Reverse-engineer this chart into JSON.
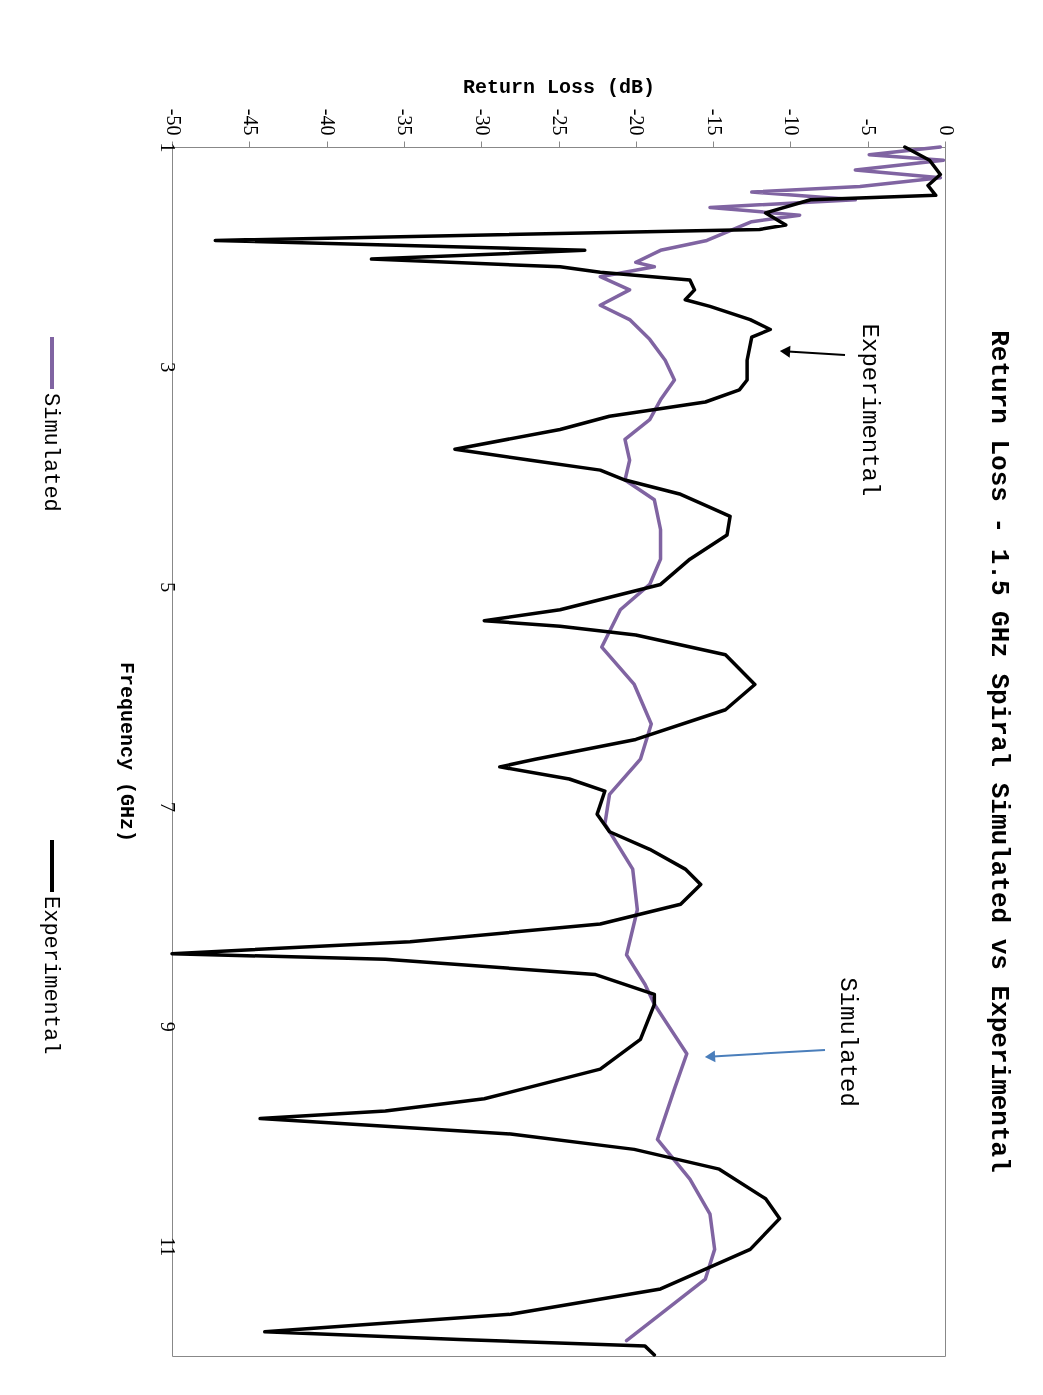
{
  "chart_data": {
    "type": "line",
    "title": "Return Loss - 1.5 GHz Spiral Simulated vs Experimental",
    "xlabel": "Return Loss (dB)",
    "ylabel": "Frequency (GHz)",
    "xlim": [
      -50,
      0
    ],
    "xticks": [
      -50,
      -45,
      -40,
      -35,
      -30,
      -25,
      -20,
      -15,
      -10,
      -5,
      0
    ],
    "ylim": [
      12,
      1
    ],
    "yticks": [
      1,
      3,
      5,
      7,
      9,
      11
    ],
    "grid": false,
    "legend": "left",
    "marker": "none",
    "line_style": "solid",
    "series": [
      {
        "name": "Simulated",
        "color": "#8064a2",
        "values": [
          1.0,
          1.07,
          1.12,
          1.21,
          1.28,
          1.36,
          1.41,
          1.48,
          1.55,
          1.62,
          1.68,
          1.85,
          1.94,
          2.05,
          2.09,
          2.18,
          2.3,
          2.44,
          2.57,
          2.75,
          2.94,
          3.12,
          3.3,
          3.48,
          3.66,
          3.85,
          4.03,
          4.21,
          4.48,
          4.75,
          4.98,
          5.21,
          5.55,
          5.89,
          6.25,
          6.57,
          6.89,
          7.16,
          7.57,
          7.94,
          8.35,
          8.62,
          8.8,
          9.25,
          9.57,
          10.03,
          10.39,
          10.71,
          11.03,
          11.3,
          11.62,
          11.86
        ],
        "x": [
          -0.3,
          -4.9,
          -0.1,
          -5.8,
          -0.3,
          -5.5,
          -12.5,
          -5.8,
          -15.2,
          -9.4,
          -12.5,
          -15.4,
          -18.4,
          -20.0,
          -18.8,
          -22.3,
          -20.4,
          -22.3,
          -20.4,
          -19.1,
          -18.1,
          -17.5,
          -18.4,
          -19.1,
          -20.7,
          -20.4,
          -20.7,
          -18.8,
          -18.4,
          -18.4,
          -19.1,
          -21.0,
          -22.2,
          -20.1,
          -19.0,
          -19.7,
          -21.7,
          -22.0,
          -20.2,
          -19.9,
          -20.6,
          -19.4,
          -18.8,
          -16.7,
          -17.5,
          -18.6,
          -16.5,
          -15.2,
          -14.9,
          -15.5,
          -18.4,
          -20.6
        ]
      },
      {
        "name": "Experimental",
        "color": "#000000",
        "values": [
          1.0,
          1.12,
          1.25,
          1.35,
          1.44,
          1.48,
          1.6,
          1.71,
          1.75,
          1.85,
          1.94,
          2.02,
          2.09,
          2.14,
          2.21,
          2.3,
          2.39,
          2.45,
          2.57,
          2.66,
          2.73,
          2.94,
          3.12,
          3.21,
          3.32,
          3.45,
          3.57,
          3.75,
          3.85,
          3.94,
          4.03,
          4.16,
          4.36,
          4.53,
          4.75,
          4.98,
          5.21,
          5.31,
          5.36,
          5.44,
          5.62,
          5.89,
          6.12,
          6.39,
          6.57,
          6.64,
          6.75,
          6.86,
          7.07,
          7.23,
          7.39,
          7.57,
          7.71,
          7.89,
          8.07,
          8.23,
          8.34,
          8.39,
          8.53,
          8.71,
          8.8,
          9.12,
          9.39,
          9.66,
          9.77,
          9.84,
          9.91,
          9.98,
          10.12,
          10.3,
          10.57,
          10.75,
          11.03,
          11.39,
          11.62,
          11.78,
          11.85,
          11.91,
          11.99
        ],
        "x": [
          -2.6,
          -1.0,
          -0.3,
          -1.1,
          -0.6,
          -8.7,
          -11.6,
          -10.3,
          -12.0,
          -47.2,
          -23.3,
          -37.1,
          -24.9,
          -22.3,
          -16.5,
          -16.2,
          -16.8,
          -15.2,
          -12.6,
          -11.3,
          -12.5,
          -12.8,
          -12.8,
          -13.3,
          -15.5,
          -21.7,
          -24.9,
          -31.7,
          -26.8,
          -22.3,
          -20.7,
          -17.1,
          -13.9,
          -14.1,
          -16.5,
          -18.4,
          -24.9,
          -29.8,
          -24.9,
          -20.0,
          -14.2,
          -12.3,
          -14.2,
          -20.0,
          -26.5,
          -28.8,
          -24.3,
          -22.0,
          -22.5,
          -21.7,
          -19.1,
          -16.8,
          -15.8,
          -17.1,
          -22.3,
          -34.6,
          -50,
          -36.2,
          -22.6,
          -18.8,
          -18.8,
          -19.7,
          -22.3,
          -29.8,
          -36.2,
          -44.3,
          -36.2,
          -28.1,
          -20.1,
          -14.6,
          -11.6,
          -10.7,
          -12.6,
          -18.4,
          -28.1,
          -44.0,
          -31.4,
          -19.4,
          -18.8
        ]
      }
    ],
    "annotations": [
      "Experimental",
      "Simulated"
    ]
  }
}
